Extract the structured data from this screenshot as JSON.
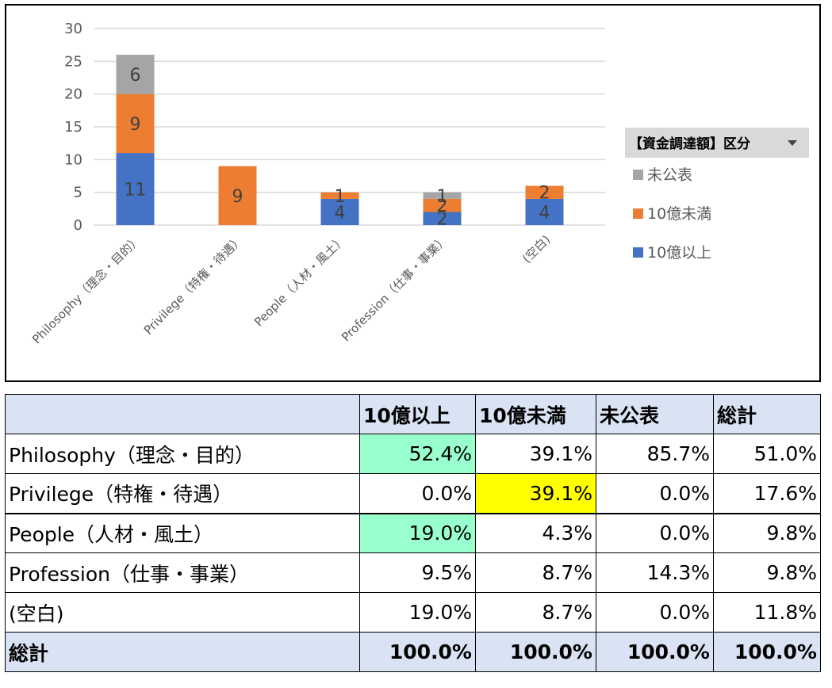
{
  "chart_data": {
    "type": "bar",
    "stacked": true,
    "categories": [
      "Philosophy（理念・目的）",
      "Privilege（特権・待遇）",
      "People（人材・風土）",
      "Profession（仕事・事業）",
      "(空白)"
    ],
    "series": [
      {
        "name": "10億以上",
        "color": "#4472c4",
        "values": [
          11,
          0,
          4,
          2,
          4
        ]
      },
      {
        "name": "10億未満",
        "color": "#ed7d31",
        "values": [
          9,
          9,
          1,
          2,
          2
        ]
      },
      {
        "name": "未公表",
        "color": "#a5a5a5",
        "values": [
          6,
          0,
          0,
          1,
          0
        ]
      }
    ],
    "ylim": [
      0,
      30
    ],
    "yticks": [
      0,
      5,
      10,
      15,
      20,
      25,
      30
    ],
    "grid": true,
    "legend": {
      "title": "【資金調達額】区分",
      "placement": "right",
      "items": [
        "未公表",
        "10億未満",
        "10億以上"
      ]
    }
  },
  "table": {
    "header": [
      "",
      "10億以上",
      "10億未満",
      "未公表",
      "総計"
    ],
    "rows": [
      {
        "label": "Philosophy（理念・目的）",
        "cells": [
          "52.4%",
          "39.1%",
          "85.7%",
          "51.0%"
        ],
        "highlight": [
          "green",
          "",
          "",
          ""
        ]
      },
      {
        "label": "Privilege（特権・待遇）",
        "cells": [
          "0.0%",
          "39.1%",
          "0.0%",
          "17.6%"
        ],
        "highlight": [
          "",
          "yellow",
          "",
          ""
        ]
      },
      {
        "label": "People（人材・風土）",
        "cells": [
          "19.0%",
          "4.3%",
          "0.0%",
          "9.8%"
        ],
        "highlight": [
          "green",
          "",
          "",
          ""
        ]
      },
      {
        "label": "Profession（仕事・事業）",
        "cells": [
          "9.5%",
          "8.7%",
          "14.3%",
          "9.8%"
        ],
        "highlight": [
          "",
          "",
          "",
          ""
        ]
      },
      {
        "label": "(空白)",
        "cells": [
          "19.0%",
          "8.7%",
          "0.0%",
          "11.8%"
        ],
        "highlight": [
          "",
          "",
          "",
          ""
        ]
      }
    ],
    "total": {
      "label": "総計",
      "cells": [
        "100.0%",
        "100.0%",
        "100.0%",
        "100.0%"
      ]
    },
    "colors": {
      "header_bg": "#dae3f3",
      "green": "#99ffcc",
      "yellow": "#ffff00"
    }
  }
}
